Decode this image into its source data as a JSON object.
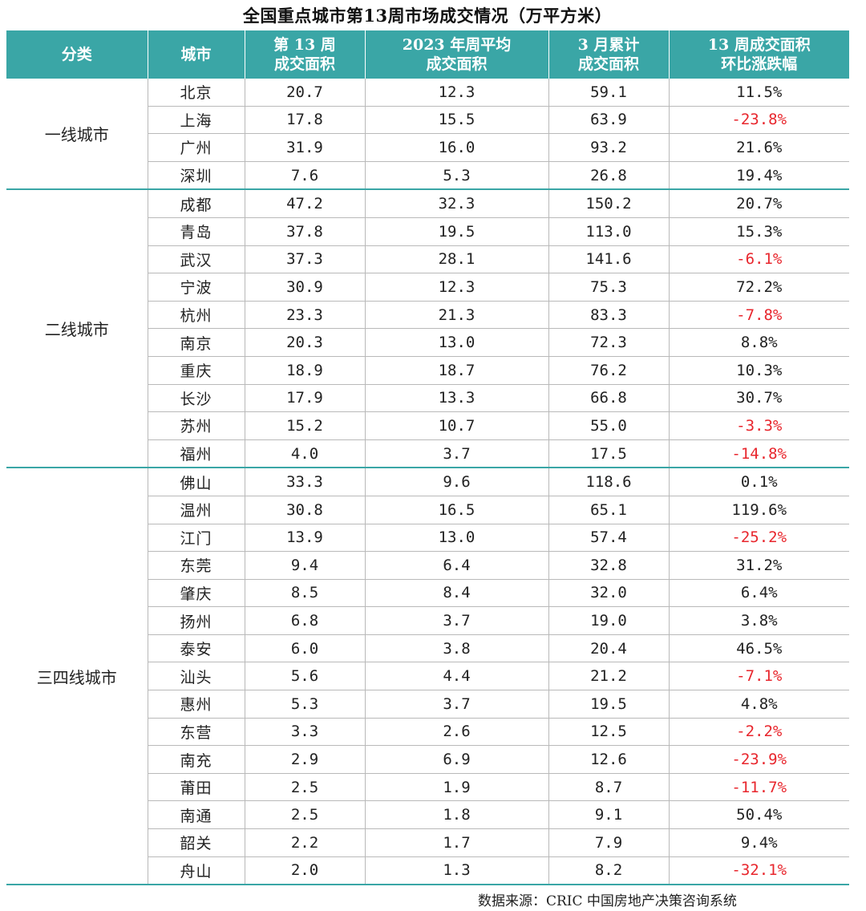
{
  "chart_data": {
    "type": "table",
    "title": "全国重点城市第13周市场成交情况（万平方米）",
    "columns": [
      {
        "line1": "分类",
        "line2": ""
      },
      {
        "line1": "城市",
        "line2": ""
      },
      {
        "line1": "第 13 周",
        "line2": "成交面积"
      },
      {
        "line1": "2023 年周平均",
        "line2": "成交面积"
      },
      {
        "line1": "3 月累计",
        "line2": "成交面积"
      },
      {
        "line1": "13 周成交面积",
        "line2": "环比涨跌幅"
      }
    ],
    "groups": [
      {
        "category": "一线城市",
        "rows": [
          {
            "city": "北京",
            "week13": "20.7",
            "avg2023": "12.3",
            "march": "59.1",
            "change": "11.5%"
          },
          {
            "city": "上海",
            "week13": "17.8",
            "avg2023": "15.5",
            "march": "63.9",
            "change": "-23.8%"
          },
          {
            "city": "广州",
            "week13": "31.9",
            "avg2023": "16.0",
            "march": "93.2",
            "change": "21.6%"
          },
          {
            "city": "深圳",
            "week13": "7.6",
            "avg2023": "5.3",
            "march": "26.8",
            "change": "19.4%"
          }
        ]
      },
      {
        "category": "二线城市",
        "rows": [
          {
            "city": "成都",
            "week13": "47.2",
            "avg2023": "32.3",
            "march": "150.2",
            "change": "20.7%"
          },
          {
            "city": "青岛",
            "week13": "37.8",
            "avg2023": "19.5",
            "march": "113.0",
            "change": "15.3%"
          },
          {
            "city": "武汉",
            "week13": "37.3",
            "avg2023": "28.1",
            "march": "141.6",
            "change": "-6.1%"
          },
          {
            "city": "宁波",
            "week13": "30.9",
            "avg2023": "12.3",
            "march": "75.3",
            "change": "72.2%"
          },
          {
            "city": "杭州",
            "week13": "23.3",
            "avg2023": "21.3",
            "march": "83.3",
            "change": "-7.8%"
          },
          {
            "city": "南京",
            "week13": "20.3",
            "avg2023": "13.0",
            "march": "72.3",
            "change": "8.8%"
          },
          {
            "city": "重庆",
            "week13": "18.9",
            "avg2023": "18.7",
            "march": "76.2",
            "change": "10.3%"
          },
          {
            "city": "长沙",
            "week13": "17.9",
            "avg2023": "13.3",
            "march": "66.8",
            "change": "30.7%"
          },
          {
            "city": "苏州",
            "week13": "15.2",
            "avg2023": "10.7",
            "march": "55.0",
            "change": "-3.3%"
          },
          {
            "city": "福州",
            "week13": "4.0",
            "avg2023": "3.7",
            "march": "17.5",
            "change": "-14.8%"
          }
        ]
      },
      {
        "category": "三四线城市",
        "rows": [
          {
            "city": "佛山",
            "week13": "33.3",
            "avg2023": "9.6",
            "march": "118.6",
            "change": "0.1%"
          },
          {
            "city": "温州",
            "week13": "30.8",
            "avg2023": "16.5",
            "march": "65.1",
            "change": "119.6%"
          },
          {
            "city": "江门",
            "week13": "13.9",
            "avg2023": "13.0",
            "march": "57.4",
            "change": "-25.2%"
          },
          {
            "city": "东莞",
            "week13": "9.4",
            "avg2023": "6.4",
            "march": "32.8",
            "change": "31.2%"
          },
          {
            "city": "肇庆",
            "week13": "8.5",
            "avg2023": "8.4",
            "march": "32.0",
            "change": "6.4%"
          },
          {
            "city": "扬州",
            "week13": "6.8",
            "avg2023": "3.7",
            "march": "19.0",
            "change": "3.8%"
          },
          {
            "city": "泰安",
            "week13": "6.0",
            "avg2023": "3.8",
            "march": "20.4",
            "change": "46.5%"
          },
          {
            "city": "汕头",
            "week13": "5.6",
            "avg2023": "4.4",
            "march": "21.2",
            "change": "-7.1%"
          },
          {
            "city": "惠州",
            "week13": "5.3",
            "avg2023": "3.7",
            "march": "19.5",
            "change": "4.8%"
          },
          {
            "city": "东营",
            "week13": "3.3",
            "avg2023": "2.6",
            "march": "12.5",
            "change": "-2.2%"
          },
          {
            "city": "南充",
            "week13": "2.9",
            "avg2023": "6.9",
            "march": "12.6",
            "change": "-23.9%"
          },
          {
            "city": "莆田",
            "week13": "2.5",
            "avg2023": "1.9",
            "march": "8.7",
            "change": "-11.7%"
          },
          {
            "city": "南通",
            "week13": "2.5",
            "avg2023": "1.8",
            "march": "9.1",
            "change": "50.4%"
          },
          {
            "city": "韶关",
            "week13": "2.2",
            "avg2023": "1.7",
            "march": "7.9",
            "change": "9.4%"
          },
          {
            "city": "舟山",
            "week13": "2.0",
            "avg2023": "1.3",
            "march": "8.2",
            "change": "-32.1%"
          }
        ]
      }
    ],
    "colors": {
      "header_bg": "#3aa6a6",
      "header_text": "#ffffff",
      "negative": "#e8262d",
      "text": "#222222"
    },
    "source": "数据来源：CRIC 中国房地产决策咨询系统"
  }
}
